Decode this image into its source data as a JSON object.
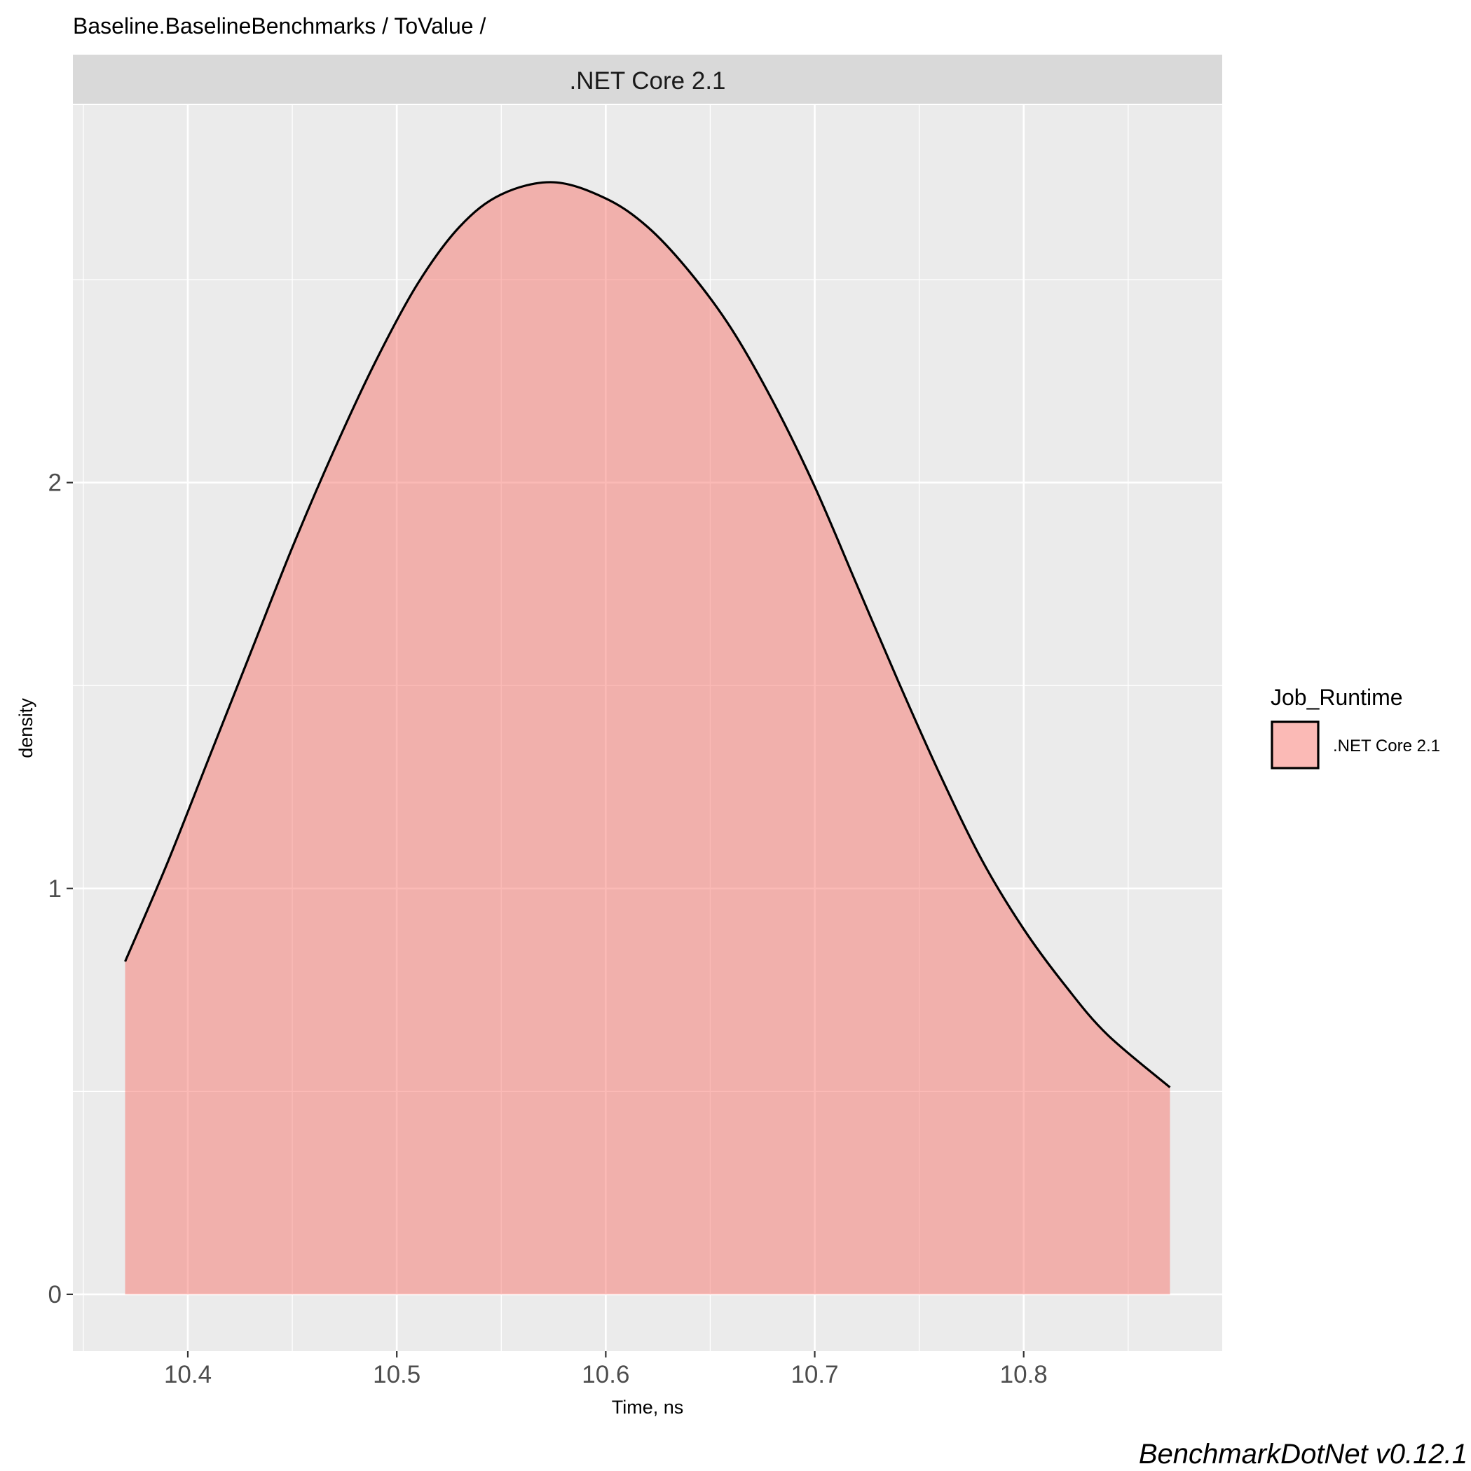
{
  "chart_data": {
    "type": "area",
    "title": "Baseline.BaselineBenchmarks / ToValue /",
    "facet_label": ".NET Core 2.1",
    "xlabel": "Time, ns",
    "ylabel": "density",
    "caption": "BenchmarkDotNet v0.12.1",
    "xlim": [
      10.345,
      10.895
    ],
    "ylim": [
      -0.14,
      2.93
    ],
    "x_ticks": [
      10.4,
      10.5,
      10.6,
      10.7,
      10.8
    ],
    "x_tick_labels": [
      "10.4",
      "10.5",
      "10.6",
      "10.7",
      "10.8"
    ],
    "y_ticks": [
      0,
      1,
      2
    ],
    "y_tick_labels": [
      "0",
      "1",
      "2"
    ],
    "grid": true,
    "legend": {
      "title": "Job_Runtime",
      "placement": "right",
      "entries": [
        ".NET Core 2.1"
      ]
    },
    "series": [
      {
        "name": ".NET Core 2.1",
        "fill_color": "#F8766D",
        "fill_opacity": 0.5,
        "line_color": "#000000",
        "x": [
          10.37,
          10.39,
          10.41,
          10.43,
          10.45,
          10.47,
          10.49,
          10.51,
          10.53,
          10.55,
          10.575,
          10.6,
          10.62,
          10.64,
          10.66,
          10.68,
          10.7,
          10.72,
          10.74,
          10.76,
          10.78,
          10.8,
          10.82,
          10.84,
          10.87
        ],
        "y": [
          0.82,
          1.06,
          1.32,
          1.58,
          1.84,
          2.08,
          2.3,
          2.49,
          2.63,
          2.71,
          2.74,
          2.7,
          2.63,
          2.52,
          2.38,
          2.2,
          1.99,
          1.75,
          1.51,
          1.28,
          1.07,
          0.9,
          0.76,
          0.64,
          0.51
        ]
      }
    ]
  }
}
